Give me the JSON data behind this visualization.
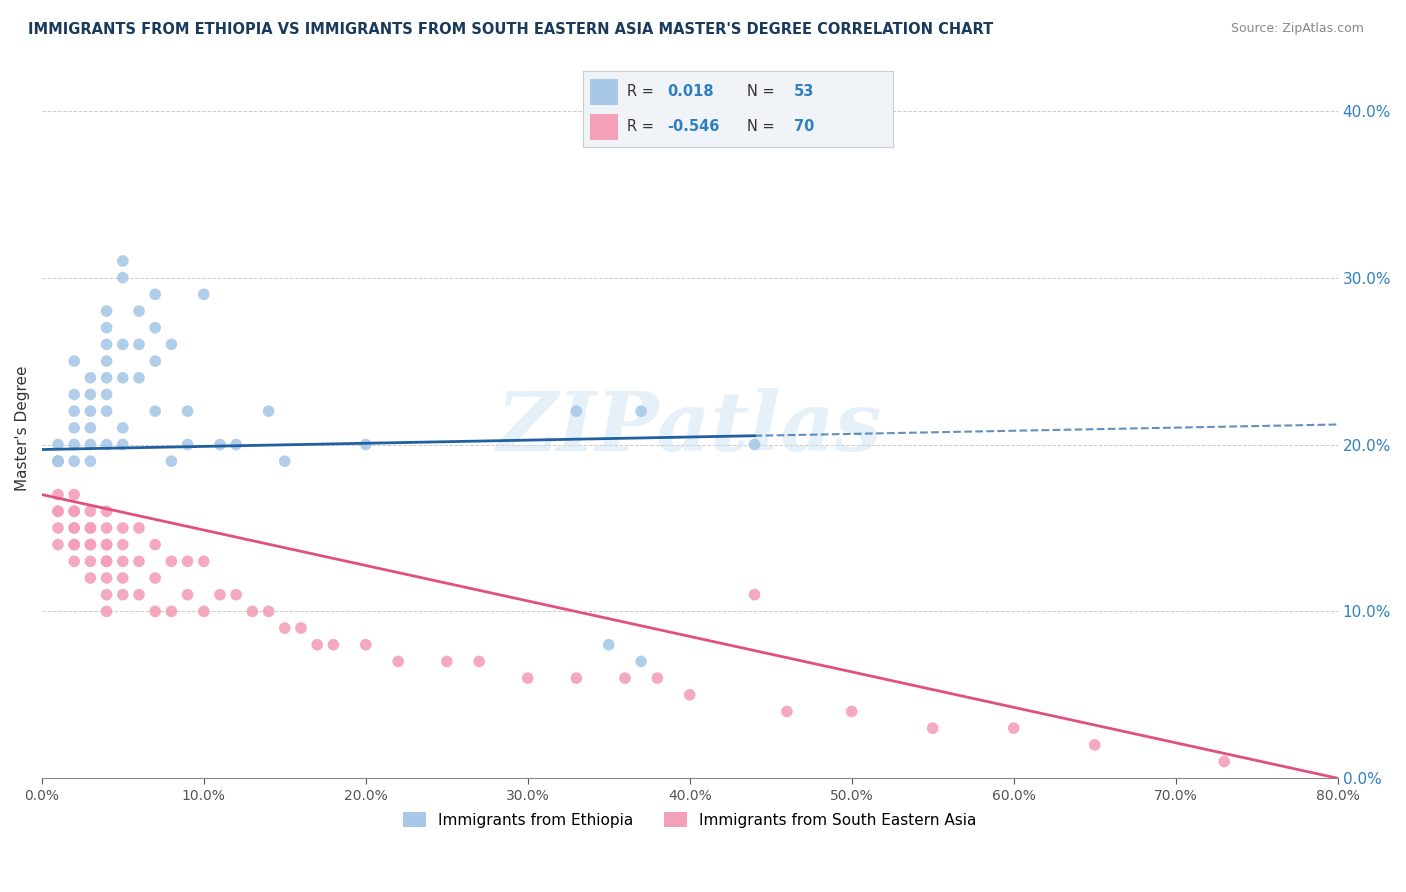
{
  "title": "IMMIGRANTS FROM ETHIOPIA VS IMMIGRANTS FROM SOUTH EASTERN ASIA MASTER'S DEGREE CORRELATION CHART",
  "source": "Source: ZipAtlas.com",
  "xlim": [
    0.0,
    0.8
  ],
  "ylim": [
    0.0,
    0.42
  ],
  "legend_label1": "Immigrants from Ethiopia",
  "legend_label2": "Immigrants from South Eastern Asia",
  "r1": "0.018",
  "n1": "53",
  "r2": "-0.546",
  "n2": "70",
  "color_blue": "#a8c8e8",
  "color_pink": "#f4a0b8",
  "color_blue_line": "#2060a0",
  "color_pink_line": "#e05080",
  "color_blue_text": "#3080c0",
  "title_color": "#1a3a5c",
  "watermark": "ZIPatlas",
  "blue_scatter_x": [
    0.01,
    0.01,
    0.01,
    0.01,
    0.01,
    0.02,
    0.02,
    0.02,
    0.02,
    0.02,
    0.02,
    0.03,
    0.03,
    0.03,
    0.03,
    0.03,
    0.03,
    0.04,
    0.04,
    0.04,
    0.04,
    0.04,
    0.04,
    0.04,
    0.04,
    0.05,
    0.05,
    0.05,
    0.05,
    0.05,
    0.05,
    0.06,
    0.06,
    0.06,
    0.07,
    0.07,
    0.07,
    0.07,
    0.08,
    0.08,
    0.09,
    0.09,
    0.1,
    0.11,
    0.12,
    0.14,
    0.15,
    0.2,
    0.33,
    0.35,
    0.37,
    0.37,
    0.44
  ],
  "blue_scatter_y": [
    0.19,
    0.19,
    0.19,
    0.19,
    0.2,
    0.19,
    0.2,
    0.21,
    0.22,
    0.23,
    0.25,
    0.19,
    0.2,
    0.21,
    0.22,
    0.23,
    0.24,
    0.2,
    0.22,
    0.23,
    0.24,
    0.25,
    0.26,
    0.27,
    0.28,
    0.2,
    0.21,
    0.24,
    0.26,
    0.3,
    0.31,
    0.24,
    0.26,
    0.28,
    0.22,
    0.25,
    0.27,
    0.29,
    0.19,
    0.26,
    0.2,
    0.22,
    0.29,
    0.2,
    0.2,
    0.22,
    0.19,
    0.2,
    0.22,
    0.08,
    0.22,
    0.07,
    0.2
  ],
  "pink_scatter_x": [
    0.01,
    0.01,
    0.01,
    0.01,
    0.01,
    0.02,
    0.02,
    0.02,
    0.02,
    0.02,
    0.02,
    0.02,
    0.02,
    0.03,
    0.03,
    0.03,
    0.03,
    0.03,
    0.03,
    0.03,
    0.04,
    0.04,
    0.04,
    0.04,
    0.04,
    0.04,
    0.04,
    0.04,
    0.04,
    0.05,
    0.05,
    0.05,
    0.05,
    0.05,
    0.06,
    0.06,
    0.06,
    0.07,
    0.07,
    0.07,
    0.08,
    0.08,
    0.09,
    0.09,
    0.1,
    0.1,
    0.11,
    0.12,
    0.13,
    0.14,
    0.15,
    0.16,
    0.17,
    0.18,
    0.2,
    0.22,
    0.25,
    0.27,
    0.3,
    0.33,
    0.36,
    0.38,
    0.4,
    0.44,
    0.46,
    0.5,
    0.55,
    0.6,
    0.65,
    0.73
  ],
  "pink_scatter_y": [
    0.14,
    0.15,
    0.16,
    0.16,
    0.17,
    0.13,
    0.14,
    0.14,
    0.15,
    0.15,
    0.16,
    0.16,
    0.17,
    0.12,
    0.13,
    0.14,
    0.14,
    0.15,
    0.15,
    0.16,
    0.1,
    0.11,
    0.12,
    0.13,
    0.13,
    0.14,
    0.14,
    0.15,
    0.16,
    0.11,
    0.12,
    0.13,
    0.14,
    0.15,
    0.11,
    0.13,
    0.15,
    0.1,
    0.12,
    0.14,
    0.1,
    0.13,
    0.11,
    0.13,
    0.1,
    0.13,
    0.11,
    0.11,
    0.1,
    0.1,
    0.09,
    0.09,
    0.08,
    0.08,
    0.08,
    0.07,
    0.07,
    0.07,
    0.06,
    0.06,
    0.06,
    0.06,
    0.05,
    0.11,
    0.04,
    0.04,
    0.03,
    0.03,
    0.02,
    0.01
  ],
  "blue_line_x_solid_end": 0.44,
  "blue_line_x_start": 0.0,
  "blue_line_x_end": 0.8,
  "blue_line_y_start": 0.197,
  "blue_line_y_end": 0.212,
  "pink_line_x_start": 0.0,
  "pink_line_x_end": 0.8,
  "pink_line_y_start": 0.17,
  "pink_line_y_end": 0.0
}
